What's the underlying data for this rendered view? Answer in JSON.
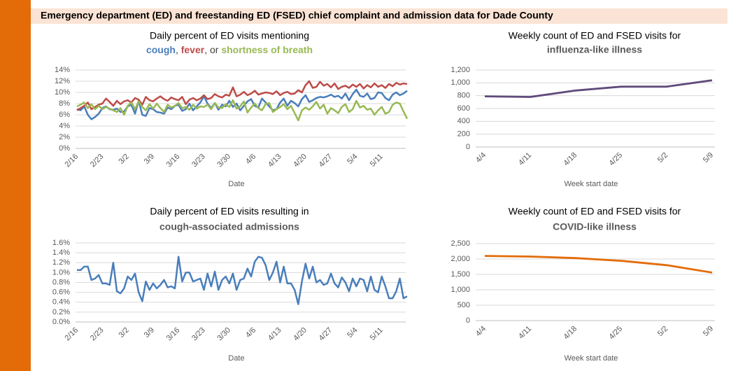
{
  "header": {
    "title": "Emergency department (ED) and freestanding ED (FSED) chief complaint and admission data for Dade County"
  },
  "chart_data": [
    {
      "type": "line",
      "title": "Daily percent of ED visits mentioning",
      "legend_separators": [
        ", ",
        ", or "
      ],
      "xlabel": "Date",
      "grid": true,
      "categories": [
        "2/16",
        null,
        null,
        null,
        null,
        null,
        null,
        "2/23",
        null,
        null,
        null,
        null,
        null,
        null,
        "3/2",
        null,
        null,
        null,
        null,
        null,
        null,
        "3/9",
        null,
        null,
        null,
        null,
        null,
        null,
        "3/16",
        null,
        null,
        null,
        null,
        null,
        null,
        "3/23",
        null,
        null,
        null,
        null,
        null,
        null,
        "3/30",
        null,
        null,
        null,
        null,
        null,
        null,
        "4/6",
        null,
        null,
        null,
        null,
        null,
        null,
        "4/13",
        null,
        null,
        null,
        null,
        null,
        null,
        "4/20",
        null,
        null,
        null,
        null,
        null,
        null,
        "4/27",
        null,
        null,
        null,
        null,
        null,
        null,
        "5/4",
        null,
        null,
        null,
        null,
        null,
        null,
        "5/11",
        null,
        null,
        null,
        null,
        null,
        null,
        null
      ],
      "ylim": [
        0,
        14
      ],
      "yticks": [
        {
          "value": 0,
          "label": "0%"
        },
        {
          "value": 2,
          "label": "2%"
        },
        {
          "value": 4,
          "label": "4%"
        },
        {
          "value": 6,
          "label": "6%"
        },
        {
          "value": 8,
          "label": "8%"
        },
        {
          "value": 10,
          "label": "10%"
        },
        {
          "value": 12,
          "label": "12%"
        },
        {
          "value": 14,
          "label": "14%"
        }
      ],
      "series": [
        {
          "name": "cough",
          "color": "#4a7ebb",
          "values": [
            7.0,
            6.8,
            7.5,
            6.0,
            5.2,
            5.6,
            6.2,
            7.2,
            7.5,
            7.0,
            6.9,
            7.1,
            6.5,
            6.6,
            7.5,
            7.8,
            6.2,
            8.5,
            6.0,
            5.8,
            7.2,
            7.0,
            6.5,
            6.4,
            6.2,
            7.3,
            7.0,
            7.6,
            7.8,
            6.7,
            7.0,
            8.0,
            6.8,
            7.5,
            8.2,
            9.3,
            8.0,
            7.2,
            8.1,
            6.9,
            7.8,
            7.5,
            8.5,
            7.4,
            8.0,
            6.8,
            7.6,
            8.4,
            8.8,
            7.6,
            7.3,
            8.9,
            8.2,
            7.5,
            6.8,
            7.0,
            8.2,
            8.9,
            7.6,
            8.5,
            8.1,
            7.5,
            8.8,
            9.5,
            8.3,
            8.6,
            9.0,
            9.2,
            9.1,
            9.3,
            9.6,
            9.2,
            9.4,
            8.9,
            9.8,
            8.6,
            9.7,
            10.5,
            9.4,
            9.2,
            9.8,
            8.8,
            9.0,
            10.0,
            9.9,
            9.0,
            8.6,
            9.6,
            10.0,
            9.5,
            9.8,
            10.3
          ]
        },
        {
          "name": "fever",
          "color": "#be4b48",
          "values": [
            6.8,
            7.2,
            7.6,
            8.2,
            7.0,
            7.4,
            7.8,
            8.0,
            8.9,
            8.3,
            7.6,
            8.5,
            7.9,
            8.4,
            8.6,
            8.2,
            9.0,
            8.7,
            7.8,
            9.2,
            8.6,
            8.4,
            8.9,
            9.3,
            8.8,
            8.5,
            9.1,
            8.8,
            8.6,
            9.2,
            7.9,
            8.7,
            9.0,
            8.6,
            8.9,
            9.5,
            8.8,
            9.0,
            9.7,
            9.3,
            9.1,
            9.6,
            9.4,
            10.9,
            9.3,
            9.6,
            10.1,
            9.5,
            9.8,
            10.3,
            9.6,
            9.8,
            10.0,
            9.9,
            9.7,
            10.2,
            9.5,
            9.9,
            10.1,
            9.7,
            9.8,
            10.4,
            10.0,
            11.3,
            12.0,
            10.8,
            11.0,
            11.9,
            11.2,
            11.5,
            10.9,
            11.6,
            10.6,
            11.0,
            11.2,
            10.8,
            11.4,
            11.0,
            11.5,
            10.7,
            11.3,
            10.9,
            11.6,
            11.0,
            11.3,
            10.8,
            11.5,
            11.1,
            11.7,
            11.4,
            11.6,
            11.5
          ]
        },
        {
          "name": "shortness of breath",
          "color": "#98b954",
          "values": [
            7.5,
            7.8,
            8.2,
            7.2,
            7.9,
            7.0,
            7.6,
            7.0,
            7.4,
            7.1,
            6.8,
            6.5,
            7.2,
            6.0,
            7.6,
            8.2,
            7.0,
            8.4,
            7.4,
            6.8,
            7.9,
            7.1,
            8.0,
            7.2,
            6.5,
            7.8,
            7.3,
            7.6,
            8.1,
            7.2,
            7.4,
            6.9,
            7.8,
            7.1,
            7.5,
            7.4,
            7.8,
            7.0,
            8.1,
            7.3,
            7.2,
            7.9,
            7.4,
            8.6,
            7.1,
            7.5,
            8.4,
            6.4,
            7.3,
            8.0,
            7.2,
            6.8,
            7.9,
            8.1,
            6.5,
            7.0,
            7.4,
            7.9,
            7.0,
            7.6,
            6.3,
            5.0,
            6.8,
            7.3,
            6.9,
            7.5,
            8.3,
            7.1,
            7.8,
            6.2,
            7.2,
            6.8,
            6.3,
            7.4,
            7.9,
            6.5,
            7.0,
            8.5,
            7.3,
            7.6,
            6.9,
            7.1,
            6.0,
            6.8,
            7.4,
            6.2,
            6.5,
            7.8,
            8.2,
            8.0,
            6.6,
            5.3
          ]
        }
      ]
    },
    {
      "type": "line",
      "title": "Weekly count of ED and FSED visits for",
      "subtitle": "influenza-like illness",
      "subtitle_color": "#604a7b",
      "xlabel": "Week start date",
      "grid": true,
      "categories": [
        "4/4",
        "4/11",
        "4/18",
        "4/25",
        "5/2",
        "5/9"
      ],
      "ylim": [
        0,
        1200
      ],
      "yticks": [
        0,
        200,
        400,
        600,
        800,
        {
          "value": 1000,
          "label": "1,000"
        },
        {
          "value": 1200,
          "label": "1,200"
        }
      ],
      "series": [
        {
          "color": "#604a7b",
          "values": [
            790,
            780,
            880,
            940,
            940,
            1040
          ]
        }
      ]
    },
    {
      "type": "line",
      "title": "Daily percent of ED visits resulting in",
      "subtitle": "cough-associated admissions",
      "subtitle_color": "#4a7ebb",
      "xlabel": "Date",
      "grid": true,
      "categories": [
        "2/16",
        null,
        null,
        null,
        null,
        null,
        null,
        "2/23",
        null,
        null,
        null,
        null,
        null,
        null,
        "3/2",
        null,
        null,
        null,
        null,
        null,
        null,
        "3/9",
        null,
        null,
        null,
        null,
        null,
        null,
        "3/16",
        null,
        null,
        null,
        null,
        null,
        null,
        "3/23",
        null,
        null,
        null,
        null,
        null,
        null,
        "3/30",
        null,
        null,
        null,
        null,
        null,
        null,
        "4/6",
        null,
        null,
        null,
        null,
        null,
        null,
        "4/13",
        null,
        null,
        null,
        null,
        null,
        null,
        "4/20",
        null,
        null,
        null,
        null,
        null,
        null,
        "4/27",
        null,
        null,
        null,
        null,
        null,
        null,
        "5/4",
        null,
        null,
        null,
        null,
        null,
        null,
        "5/11",
        null,
        null,
        null,
        null,
        null,
        null,
        null
      ],
      "ylim": [
        0,
        1.6
      ],
      "yticks": [
        {
          "value": 0,
          "label": "0.0%"
        },
        {
          "value": 0.2,
          "label": "0.2%"
        },
        {
          "value": 0.4,
          "label": "0.4%"
        },
        {
          "value": 0.6,
          "label": "0.6%"
        },
        {
          "value": 0.8,
          "label": "0.8%"
        },
        {
          "value": 1.0,
          "label": "1.0%"
        },
        {
          "value": 1.2,
          "label": "1.2%"
        },
        {
          "value": 1.4,
          "label": "1.4%"
        },
        {
          "value": 1.6,
          "label": "1.6%"
        }
      ],
      "series": [
        {
          "color": "#4a7ebb",
          "values": [
            1.05,
            1.05,
            1.12,
            1.12,
            0.85,
            0.88,
            0.95,
            0.78,
            0.78,
            0.75,
            1.2,
            0.62,
            0.58,
            0.68,
            0.92,
            0.85,
            0.98,
            0.6,
            0.42,
            0.82,
            0.65,
            0.78,
            0.68,
            0.75,
            0.85,
            0.7,
            0.72,
            0.68,
            1.32,
            0.82,
            1.0,
            1.0,
            0.82,
            0.85,
            0.88,
            0.65,
            0.98,
            0.72,
            1.02,
            0.65,
            0.85,
            0.92,
            0.78,
            0.98,
            0.65,
            0.85,
            0.88,
            1.08,
            0.92,
            1.22,
            1.32,
            1.3,
            1.15,
            0.85,
            1.0,
            1.22,
            0.8,
            1.12,
            0.78,
            0.78,
            0.65,
            0.36,
            0.82,
            1.18,
            0.88,
            1.12,
            0.8,
            0.85,
            0.75,
            0.78,
            0.98,
            0.78,
            0.7,
            0.9,
            0.8,
            0.62,
            0.88,
            0.72,
            0.88,
            0.85,
            0.62,
            0.92,
            0.65,
            0.6,
            0.92,
            0.72,
            0.48,
            0.48,
            0.62,
            0.88,
            0.48,
            0.52
          ]
        }
      ]
    },
    {
      "type": "line",
      "title": "Weekly count of ED and FSED visits for",
      "subtitle": "COVID-like illness",
      "subtitle_color": "#e36c09",
      "xlabel": "Week start date",
      "grid": true,
      "categories": [
        "4/4",
        "4/11",
        "4/18",
        "4/25",
        "5/2",
        "5/9"
      ],
      "ylim": [
        0,
        2500
      ],
      "yticks": [
        0,
        500,
        {
          "value": 1000,
          "label": "1,000"
        },
        {
          "value": 1500,
          "label": "1,500"
        },
        {
          "value": 2000,
          "label": "2,000"
        },
        {
          "value": 2500,
          "label": "2,500"
        }
      ],
      "series": [
        {
          "color": "#e36c09",
          "values": [
            2100,
            2080,
            2030,
            1940,
            1800,
            1560
          ]
        }
      ]
    }
  ]
}
